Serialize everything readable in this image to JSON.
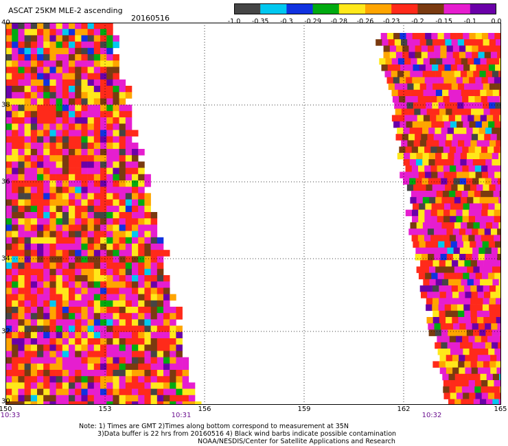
{
  "header": {
    "title": "ASCAT 25KM MLE-2 ascending",
    "date": "20160516"
  },
  "colorbar": {
    "labels": [
      "-1.0",
      "-0.35",
      "-0.3",
      "-0.29",
      "-0.28",
      "-0.26",
      "-0.23",
      "-0.2",
      "-0.15",
      "-0.1",
      "0.0"
    ],
    "colors": [
      "#454545",
      "#00c8f0",
      "#1032e0",
      "#00aa10",
      "#ffe81a",
      "#ffa500",
      "#ff2a1a",
      "#7a3a10",
      "#e61ecf",
      "#6a00a8"
    ]
  },
  "map": {
    "x_ticks": [
      "150",
      "153",
      "156",
      "159",
      "162",
      "165"
    ],
    "y_ticks": [
      "40",
      "38",
      "36",
      "34",
      "32",
      "30"
    ],
    "times": [
      "10:33",
      "10:31",
      "10:32"
    ],
    "grid": "dotted"
  },
  "notes": {
    "line1": "Note: 1) Times are GMT 2)Times along bottom correspond to measurement at 35N",
    "line2": "3)Data buffer is 22 hrs from 20160516 4) Black wind barbs indicate possible contamination",
    "line3": "NOAA/NESDIS/Center for Satellite Applications and Research"
  }
}
